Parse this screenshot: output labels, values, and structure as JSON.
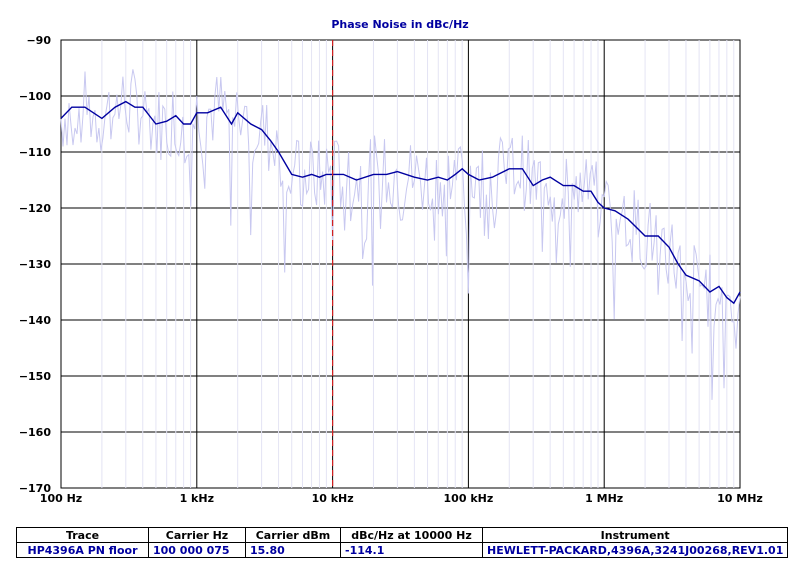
{
  "chart_data": {
    "type": "line",
    "title": "Phase Noise in dBc/Hz",
    "xscale": "log",
    "xlim": [
      100,
      10000000
    ],
    "ylim": [
      -170,
      -90
    ],
    "x_ticks": [
      {
        "value": 100,
        "label": "100 Hz"
      },
      {
        "value": 1000,
        "label": "1 kHz"
      },
      {
        "value": 10000,
        "label": "10 kHz"
      },
      {
        "value": 100000,
        "label": "100 kHz"
      },
      {
        "value": 1000000,
        "label": "1 MHz"
      },
      {
        "value": 10000000,
        "label": "10 MHz"
      }
    ],
    "y_ticks": [
      -90,
      -100,
      -110,
      -120,
      -130,
      -140,
      -150,
      -160,
      -170
    ],
    "grid": true,
    "marker_x": 10000,
    "colors": {
      "trace": "#0000a0",
      "raw": "#c8c8f0",
      "marker": "#d02020",
      "title": "#0000a0"
    },
    "series": [
      {
        "name": "HP4396A PN floor",
        "x": [
          100,
          120,
          150,
          200,
          250,
          300,
          350,
          400,
          500,
          600,
          700,
          800,
          900,
          1000,
          1200,
          1500,
          1800,
          2000,
          2500,
          3000,
          3500,
          4000,
          5000,
          6000,
          7000,
          8000,
          9000,
          10000,
          12000,
          15000,
          20000,
          25000,
          30000,
          40000,
          50000,
          60000,
          70000,
          80000,
          90000,
          100000,
          120000,
          150000,
          200000,
          250000,
          300000,
          350000,
          400000,
          500000,
          600000,
          700000,
          800000,
          900000,
          1000000,
          1200000,
          1500000,
          2000000,
          2500000,
          3000000,
          3500000,
          4000000,
          5000000,
          6000000,
          7000000,
          8000000,
          9000000,
          10000000
        ],
        "y": [
          -104,
          -102,
          -102,
          -104,
          -102,
          -101,
          -102,
          -102,
          -105,
          -104.5,
          -103.5,
          -105,
          -105,
          -103,
          -103,
          -102,
          -105,
          -103,
          -105,
          -106,
          -108,
          -110,
          -114,
          -114.5,
          -114,
          -114.5,
          -114,
          -114,
          -114,
          -115,
          -114,
          -114,
          -113.5,
          -114.5,
          -115,
          -114.5,
          -115,
          -114,
          -113,
          -114,
          -115,
          -114.5,
          -113,
          -113,
          -116,
          -115,
          -114.5,
          -116,
          -116,
          -117,
          -117,
          -119,
          -120,
          -120.5,
          -122,
          -125,
          -125,
          -127,
          -130,
          -132,
          -133,
          -135,
          -134,
          -136,
          -137,
          -135
        ]
      }
    ]
  },
  "table": {
    "headers": [
      "Trace",
      "Carrier Hz",
      "Carrier dBm",
      "dBc/Hz at 10000 Hz",
      "Instrument"
    ],
    "row": [
      "HP4396A PN floor",
      "100 000 075",
      "15.80",
      "-114.1",
      "HEWLETT-PACKARD,4396A,3241J00268,REV1.01"
    ]
  }
}
